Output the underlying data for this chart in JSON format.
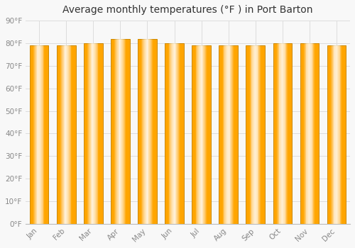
{
  "title": "Average monthly temperatures (°F ) in Port Barton",
  "months": [
    "Jan",
    "Feb",
    "Mar",
    "Apr",
    "May",
    "Jun",
    "Jul",
    "Aug",
    "Sep",
    "Oct",
    "Nov",
    "Dec"
  ],
  "values": [
    79,
    79,
    80,
    82,
    82,
    80,
    79,
    79,
    79,
    80,
    80,
    79
  ],
  "bar_color_main": "#FFA500",
  "bar_color_light": "#FFD060",
  "bar_color_dark": "#E08000",
  "bar_edge_color": "#CC8800",
  "background_color": "#F8F8F8",
  "grid_color": "#DDDDDD",
  "tick_label_color": "#888888",
  "title_color": "#333333",
  "ylim": [
    0,
    90
  ],
  "yticks": [
    0,
    10,
    20,
    30,
    40,
    50,
    60,
    70,
    80,
    90
  ],
  "ytick_labels": [
    "0°F",
    "10°F",
    "20°F",
    "30°F",
    "40°F",
    "50°F",
    "60°F",
    "70°F",
    "80°F",
    "90°F"
  ],
  "title_fontsize": 10,
  "tick_fontsize": 7.5,
  "bar_width": 0.7
}
